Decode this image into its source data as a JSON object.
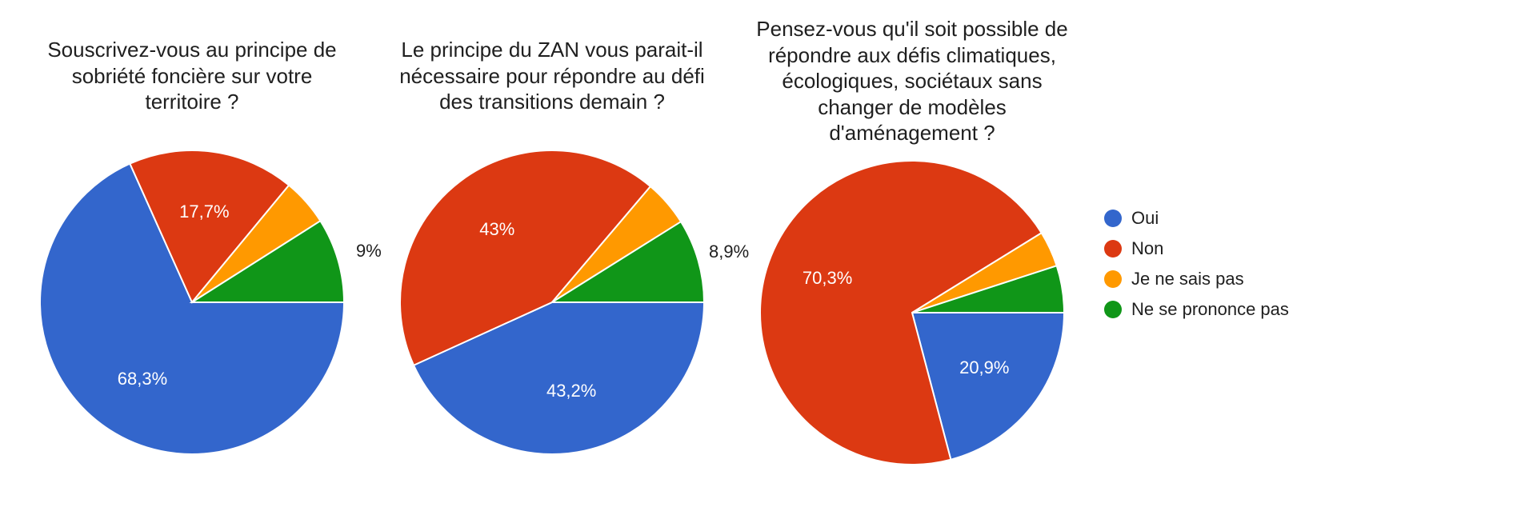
{
  "background_color": "#ffffff",
  "text_color": "#1f1f1f",
  "title_fontsize": 26,
  "label_fontsize": 22,
  "legend_fontsize": 22,
  "pie_diameter": 380,
  "slice_stroke_color": "#ffffff",
  "slice_stroke_width": 2,
  "legend": {
    "position": "right",
    "items": [
      {
        "label": "Oui",
        "color": "#3366cc"
      },
      {
        "label": "Non",
        "color": "#dc3912"
      },
      {
        "label": "Je ne sais pas",
        "color": "#ff9900"
      },
      {
        "label": "Ne se prononce pas",
        "color": "#109618"
      }
    ]
  },
  "charts": [
    {
      "type": "pie",
      "title": "Souscrivez-vous au principe de sobriété foncière sur votre territoire ?",
      "slices": [
        {
          "label": "Oui",
          "value": 68.3,
          "display": "68,3%",
          "color": "#3366cc",
          "show_label": true
        },
        {
          "label": "Non",
          "value": 17.7,
          "display": "17,7%",
          "color": "#dc3912",
          "show_label": true
        },
        {
          "label": "Je ne sais pas",
          "value": 5.0,
          "display": "5%",
          "color": "#ff9900",
          "show_label": false
        },
        {
          "label": "Ne se prononce pas",
          "value": 9.0,
          "display": "9%",
          "color": "#109618",
          "show_label": true
        }
      ]
    },
    {
      "type": "pie",
      "title": "Le principe du ZAN vous parait-il nécessaire pour répondre au défi des transitions demain ?",
      "slices": [
        {
          "label": "Oui",
          "value": 43.2,
          "display": "43,2%",
          "color": "#3366cc",
          "show_label": true
        },
        {
          "label": "Non",
          "value": 43.0,
          "display": "43%",
          "color": "#dc3912",
          "show_label": true
        },
        {
          "label": "Je ne sais pas",
          "value": 4.9,
          "display": "4,9%",
          "color": "#ff9900",
          "show_label": false
        },
        {
          "label": "Ne se prononce pas",
          "value": 8.9,
          "display": "8,9%",
          "color": "#109618",
          "show_label": true
        }
      ]
    },
    {
      "type": "pie",
      "title": "Pensez-vous qu'il soit possible de répondre aux défis climatiques, écologiques, sociétaux sans changer de modèles d'aménagement ?",
      "slices": [
        {
          "label": "Oui",
          "value": 20.9,
          "display": "20,9%",
          "color": "#3366cc",
          "show_label": true
        },
        {
          "label": "Non",
          "value": 70.3,
          "display": "70,3%",
          "color": "#dc3912",
          "show_label": true
        },
        {
          "label": "Je ne sais pas",
          "value": 3.8,
          "display": "3,8%",
          "color": "#ff9900",
          "show_label": false
        },
        {
          "label": "Ne se prononce pas",
          "value": 5.0,
          "display": "5%",
          "color": "#109618",
          "show_label": false
        }
      ]
    }
  ]
}
